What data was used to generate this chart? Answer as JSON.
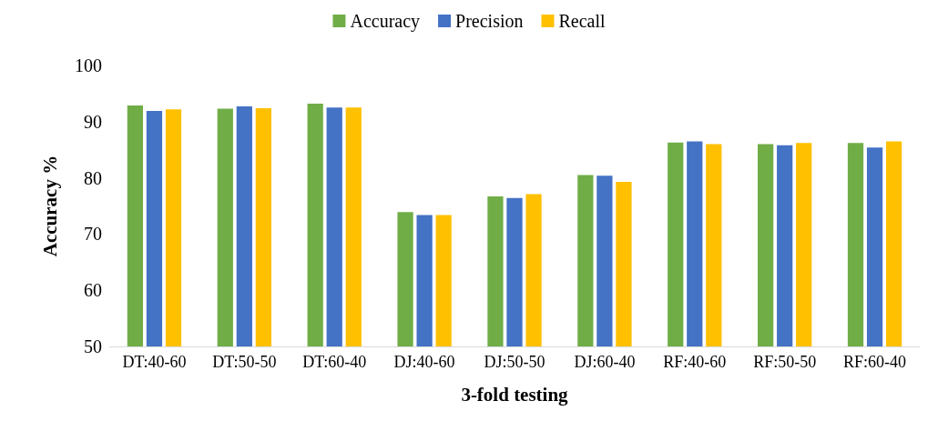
{
  "chart_data": {
    "type": "bar",
    "xlabel": "3-fold testing",
    "ylabel": "Accuracy %",
    "categories": [
      "DT:40-60",
      "DT:50-50",
      "DT:60-40",
      "DJ:40-60",
      "DJ:50-50",
      "DJ:60-40",
      "RF:40-60",
      "RF:50-50",
      "RF:60-40"
    ],
    "series": [
      {
        "name": "Accuracy",
        "color": "#70ad47",
        "values": [
          92.9,
          92.3,
          93.2,
          73.9,
          76.7,
          80.5,
          86.3,
          86.0,
          86.2
        ]
      },
      {
        "name": "Precision",
        "color": "#4472c4",
        "values": [
          91.9,
          92.7,
          92.5,
          73.4,
          76.4,
          80.4,
          86.5,
          85.8,
          85.4
        ]
      },
      {
        "name": "Recall",
        "color": "#ffc000",
        "values": [
          92.2,
          92.4,
          92.5,
          73.4,
          77.1,
          79.3,
          86.0,
          86.2,
          86.5
        ]
      }
    ],
    "ylim": [
      50,
      100
    ],
    "yticks": [
      50,
      60,
      70,
      80,
      90,
      100
    ],
    "grid": false,
    "legend": "top"
  }
}
